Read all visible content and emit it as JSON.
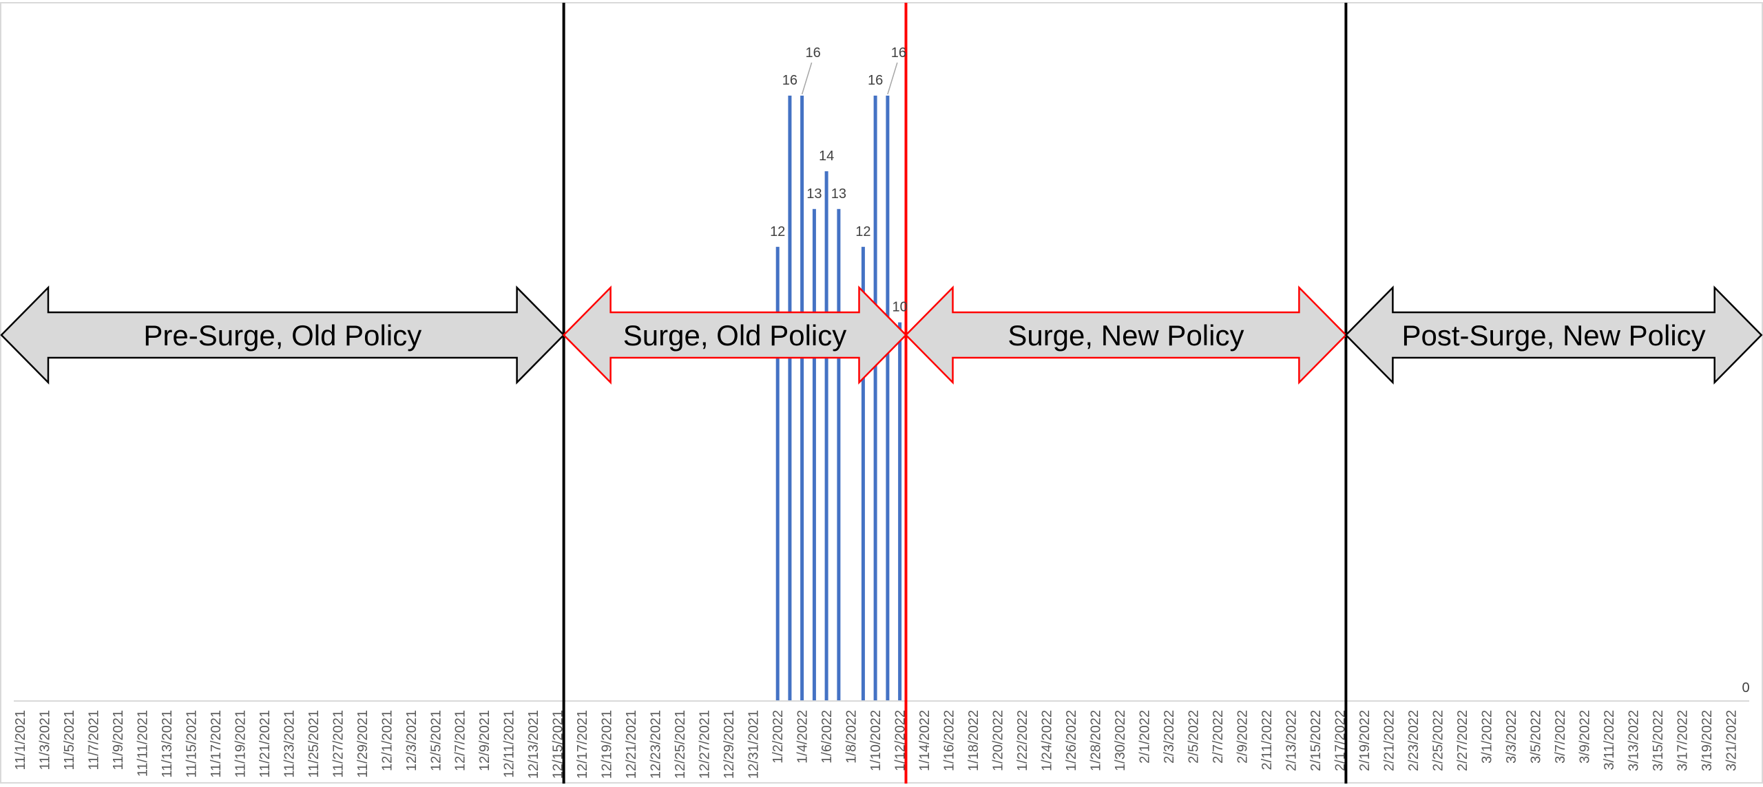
{
  "chart_data": {
    "type": "bar",
    "title": "",
    "xlabel": "",
    "ylabel": "",
    "x_start": "2021-11-01",
    "x_end": "2022-03-22",
    "x_tick_labels": [
      "11/1/2021",
      "11/3/2021",
      "11/5/2021",
      "11/7/2021",
      "11/9/2021",
      "11/11/2021",
      "11/13/2021",
      "11/15/2021",
      "11/17/2021",
      "11/19/2021",
      "11/21/2021",
      "11/23/2021",
      "11/25/2021",
      "11/27/2021",
      "11/29/2021",
      "12/1/2021",
      "12/3/2021",
      "12/5/2021",
      "12/7/2021",
      "12/9/2021",
      "12/11/2021",
      "12/13/2021",
      "12/15/2021",
      "12/17/2021",
      "12/19/2021",
      "12/21/2021",
      "12/23/2021",
      "12/25/2021",
      "12/27/2021",
      "12/29/2021",
      "12/31/2021",
      "1/2/2022",
      "1/4/2022",
      "1/6/2022",
      "1/8/2022",
      "1/10/2022",
      "1/12/2022",
      "1/14/2022",
      "1/16/2022",
      "1/18/2022",
      "1/20/2022",
      "1/22/2022",
      "1/24/2022",
      "1/26/2022",
      "1/28/2022",
      "1/30/2022",
      "2/1/2022",
      "2/3/2022",
      "2/5/2022",
      "2/7/2022",
      "2/9/2022",
      "2/11/2022",
      "2/13/2022",
      "2/15/2022",
      "2/17/2022",
      "2/19/2022",
      "2/21/2022",
      "2/23/2022",
      "2/25/2022",
      "2/27/2022",
      "3/1/2022",
      "3/3/2022",
      "3/5/2022",
      "3/7/2022",
      "3/9/2022",
      "3/11/2022",
      "3/13/2022",
      "3/15/2022",
      "3/17/2022",
      "3/19/2022",
      "3/21/2022"
    ],
    "ylim": [
      0,
      18
    ],
    "grid": false,
    "legend": "none",
    "series": [
      {
        "points": [
          {
            "date": "2022-01-02",
            "value": 12
          },
          {
            "date": "2022-01-03",
            "value": 16
          },
          {
            "date": "2022-01-04",
            "value": 16
          },
          {
            "date": "2022-01-05",
            "value": 13
          },
          {
            "date": "2022-01-06",
            "value": 14
          },
          {
            "date": "2022-01-07",
            "value": 13
          },
          {
            "date": "2022-01-09",
            "value": 12
          },
          {
            "date": "2022-01-10",
            "value": 16
          },
          {
            "date": "2022-01-11",
            "value": 16
          },
          {
            "date": "2022-01-12",
            "value": 10
          },
          {
            "date": "2022-03-22",
            "value": 0
          }
        ]
      }
    ],
    "phase_dividers": [
      {
        "date": "2021-12-16",
        "color": "#000000"
      },
      {
        "date": "2022-01-13",
        "color": "#ff0000"
      },
      {
        "date": "2022-02-18",
        "color": "#000000"
      }
    ],
    "phases": [
      {
        "label": "Pre-Surge, Old Policy",
        "start": "2021-10-29",
        "end": "2021-12-16",
        "outline": "#000000",
        "fill": "#d9d9d9"
      },
      {
        "label": "Surge, Old Policy",
        "start": "2021-12-16",
        "end": "2022-01-13",
        "outline": "#ff0000",
        "fill": "#d9d9d9"
      },
      {
        "label": "Surge, New Policy",
        "start": "2022-01-13",
        "end": "2022-02-18",
        "outline": "#ff0000",
        "fill": "#d9d9d9"
      },
      {
        "label": "Post-Surge, New Policy",
        "start": "2022-02-18",
        "end": "2022-03-24",
        "outline": "#000000",
        "fill": "#d9d9d9"
      }
    ],
    "colors": {
      "bar": "#4472c4",
      "axis": "#d9d9d9",
      "tick_text": "#595959",
      "label_text": "#404040",
      "leader": "#a6a6a6"
    }
  }
}
